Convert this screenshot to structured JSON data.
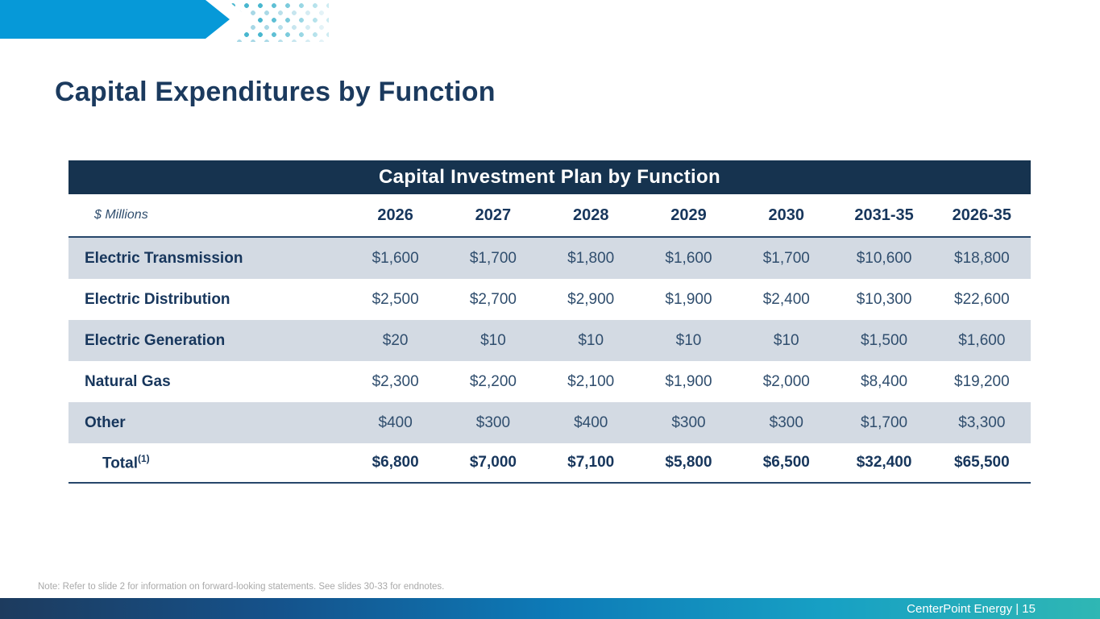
{
  "slide": {
    "title": "Capital Expenditures by Function",
    "note": "Note: Refer to slide 2 for information on forward-looking statements. See slides 30-33 for endnotes.",
    "footer_text": "CenterPoint Energy | 15"
  },
  "table": {
    "header": "Capital Investment Plan by Function",
    "unit_label": "$ Millions",
    "columns": [
      "2026",
      "2027",
      "2028",
      "2029",
      "2030",
      "2031-35",
      "2026-35"
    ],
    "rows": [
      {
        "label": "Electric Transmission",
        "values": [
          "$1,600",
          "$1,700",
          "$1,800",
          "$1,600",
          "$1,700",
          "$10,600",
          "$18,800"
        ]
      },
      {
        "label": "Electric Distribution",
        "values": [
          "$2,500",
          "$2,700",
          "$2,900",
          "$1,900",
          "$2,400",
          "$10,300",
          "$22,600"
        ]
      },
      {
        "label": "Electric Generation",
        "values": [
          "$20",
          "$10",
          "$10",
          "$10",
          "$10",
          "$1,500",
          "$1,600"
        ]
      },
      {
        "label": "Natural Gas",
        "values": [
          "$2,300",
          "$2,200",
          "$2,100",
          "$1,900",
          "$2,000",
          "$8,400",
          "$19,200"
        ]
      },
      {
        "label": "Other",
        "values": [
          "$400",
          "$300",
          "$400",
          "$300",
          "$300",
          "$1,700",
          "$3,300"
        ]
      }
    ],
    "total_row": {
      "label": "Total",
      "footnote_marker": "(1)",
      "values": [
        "$6,800",
        "$7,000",
        "$7,100",
        "$5,800",
        "$6,500",
        "$32,400",
        "$65,500"
      ]
    }
  },
  "colors": {
    "accent_blue": "#0699d8",
    "header_navy": "#16334f",
    "title_navy": "#1b3a5e",
    "row_alt_bg": "#d3dae3",
    "footer_teal": "#2fb7b4"
  }
}
